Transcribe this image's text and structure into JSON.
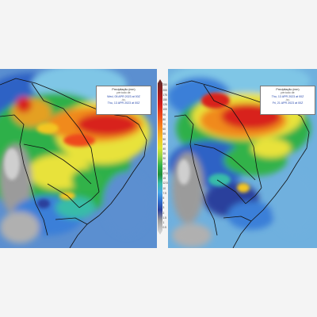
{
  "panels": [
    {
      "legend": {
        "title": "Precipitação (mm)",
        "period": "período de",
        "start": "Wed, 05 APR 2023 at 00Z",
        "separator": "-to-",
        "end": "Thu, 13 APR 2023 at 00Z"
      }
    },
    {
      "legend": {
        "title": "Precipitação (mm)",
        "period": "período de",
        "start": "Thu, 13 APR 2023 at 00Z",
        "separator": "-to-",
        "end": "Fri, 21 APR 2023 at 00Z"
      }
    }
  ],
  "colorbar": {
    "ticks": [
      "250",
      "200",
      "175",
      "150",
      "125",
      "100",
      "90",
      "80",
      "70",
      "60",
      "55",
      "50",
      "45",
      "40",
      "35",
      "30",
      "25",
      "20",
      "17.5",
      "15",
      "12.5",
      "10",
      "7.5",
      "5",
      "4",
      "3",
      "2",
      "1.5",
      "1",
      "0.5"
    ]
  },
  "colors": {
    "ocean": "#6fa6d6",
    "heavy": "#d21a1a",
    "moderate": "#f7871d",
    "light": "#31b24a",
    "dry": "#9b9b9b"
  }
}
